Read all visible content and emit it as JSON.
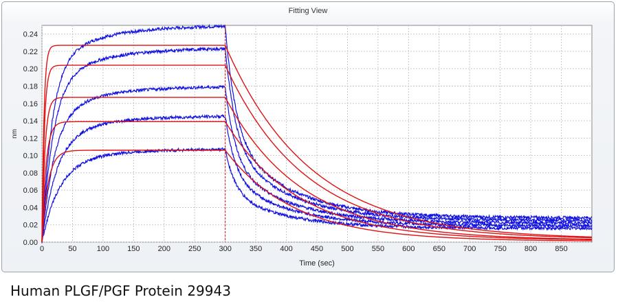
{
  "window": {
    "title": "Fitting View"
  },
  "caption": "Human PLGF/PGF Protein 29943",
  "chart_data": {
    "type": "line",
    "xlabel": "Time (sec)",
    "ylabel": "nm",
    "xlim": [
      0,
      900
    ],
    "ylim": [
      0,
      0.25
    ],
    "xticks": [
      0,
      50,
      100,
      150,
      200,
      250,
      300,
      350,
      400,
      450,
      500,
      550,
      600,
      650,
      700,
      750,
      800,
      850
    ],
    "yticks": [
      0.0,
      0.02,
      0.04,
      0.06,
      0.08,
      0.1,
      0.12,
      0.14,
      0.16,
      0.18,
      0.2,
      0.22,
      0.24
    ],
    "grid": true,
    "dissociation_start": 300,
    "colors": {
      "raw": "#1010e0",
      "fit": "#e01010",
      "divider": "#e01010"
    },
    "raw_series": [
      {
        "assoc_end": 0.249,
        "dissoc_end": 0.028
      },
      {
        "assoc_end": 0.223,
        "dissoc_end": 0.025
      },
      {
        "assoc_end": 0.179,
        "dissoc_end": 0.022
      },
      {
        "assoc_end": 0.145,
        "dissoc_end": 0.019
      },
      {
        "assoc_end": 0.107,
        "dissoc_end": 0.016
      }
    ],
    "fit_series": [
      {
        "plateau": 0.227,
        "end": 0.003
      },
      {
        "plateau": 0.204,
        "end": 0.003
      },
      {
        "plateau": 0.167,
        "end": 0.002
      },
      {
        "plateau": 0.139,
        "end": 0.002
      },
      {
        "plateau": 0.106,
        "end": 0.001
      }
    ]
  }
}
